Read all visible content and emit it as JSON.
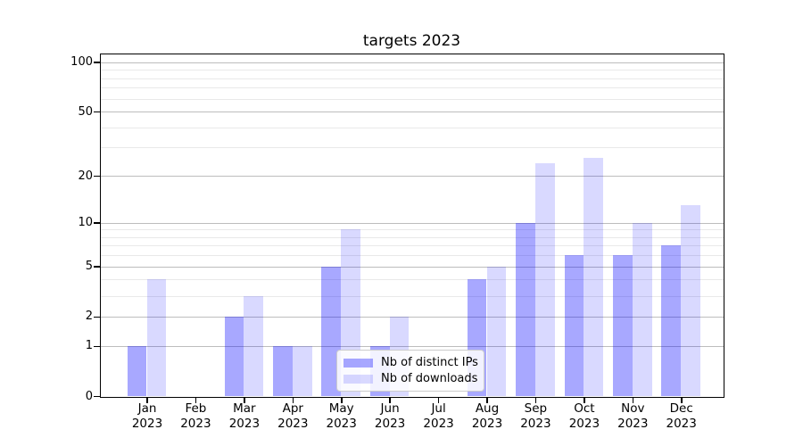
{
  "chart_data": {
    "type": "bar",
    "title": "targets 2023",
    "categories": [
      "Jan",
      "Feb",
      "Mar",
      "Apr",
      "May",
      "Jun",
      "Jul",
      "Aug",
      "Sep",
      "Oct",
      "Nov",
      "Dec"
    ],
    "year_label": "2023",
    "series": [
      {
        "name": "Nb of distinct IPs",
        "color_hex": "#a8a8fa",
        "color_css": "rgba(0,0,255,0.34)",
        "values": [
          1,
          0,
          2,
          1,
          5,
          1,
          0,
          4,
          10,
          6,
          6,
          7
        ]
      },
      {
        "name": "Nb of downloads",
        "color_hex": "#d9d9fc",
        "color_css": "rgba(0,0,255,0.15)",
        "values": [
          4,
          0,
          3,
          1,
          9,
          2,
          0,
          5,
          24,
          26,
          10,
          13
        ]
      }
    ],
    "yticks": [
      0,
      1,
      2,
      5,
      10,
      20,
      50,
      100
    ],
    "minor_yticks": [
      3,
      4,
      6,
      7,
      8,
      9,
      30,
      40,
      60,
      70,
      80,
      90
    ],
    "scale": "log(1+y)",
    "ylim": [
      0,
      112
    ],
    "grid": "horizontal",
    "legend_position": "lower center",
    "axis_color": "#000000",
    "major_grid_color": "#bdbdbd",
    "minor_grid_color": "#e9e9e9"
  }
}
